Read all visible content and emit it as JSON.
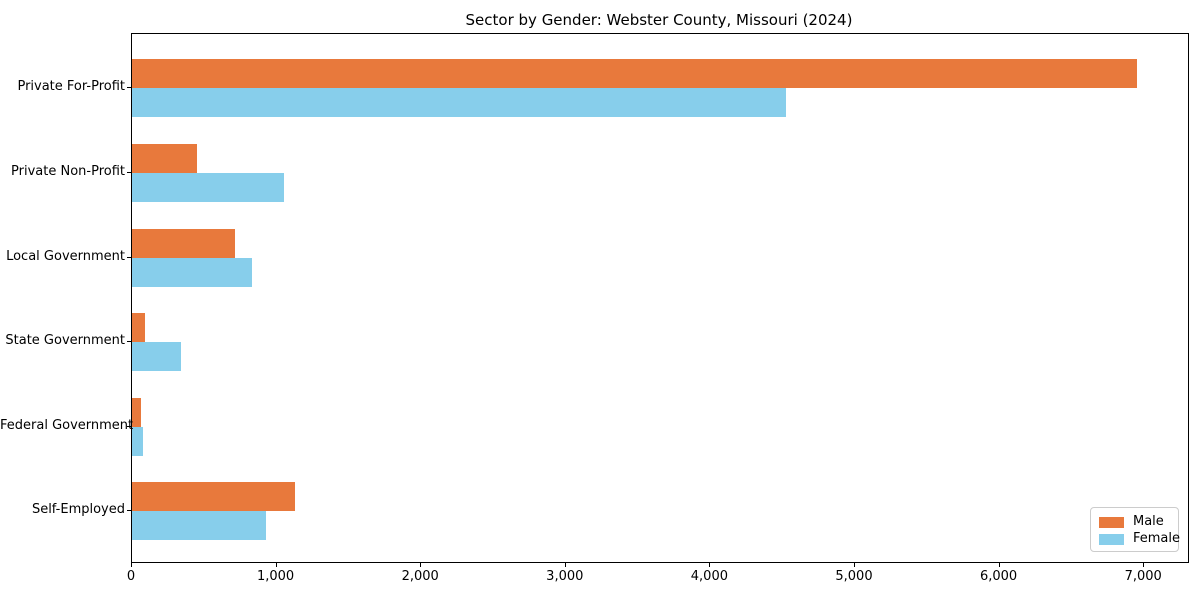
{
  "chart_data": {
    "type": "bar",
    "orientation": "horizontal",
    "title": "Sector by Gender: Webster County, Missouri (2024)",
    "categories": [
      "Private For-Profit",
      "Private Non-Profit",
      "Local Government",
      "State Government",
      "Federal Government",
      "Self-Employed"
    ],
    "series": [
      {
        "name": "Male",
        "color": "#e8793c",
        "values": [
          6950,
          450,
          715,
          90,
          65,
          1130
        ]
      },
      {
        "name": "Female",
        "color": "#87ceeb",
        "values": [
          4520,
          1050,
          830,
          340,
          75,
          925
        ]
      }
    ],
    "xlabel": "",
    "ylabel": "",
    "xlim": [
      0,
      7303
    ],
    "x_ticks": [
      0,
      1000,
      2000,
      3000,
      4000,
      5000,
      6000,
      7000
    ],
    "x_tick_labels": [
      "0",
      "1,000",
      "2,000",
      "3,000",
      "4,000",
      "5,000",
      "6,000",
      "7,000"
    ],
    "legend": {
      "position": "lower-right",
      "entries": [
        "Male",
        "Female"
      ]
    },
    "grid": false,
    "background_color": "#ffffff",
    "axis_color": "#000000"
  }
}
